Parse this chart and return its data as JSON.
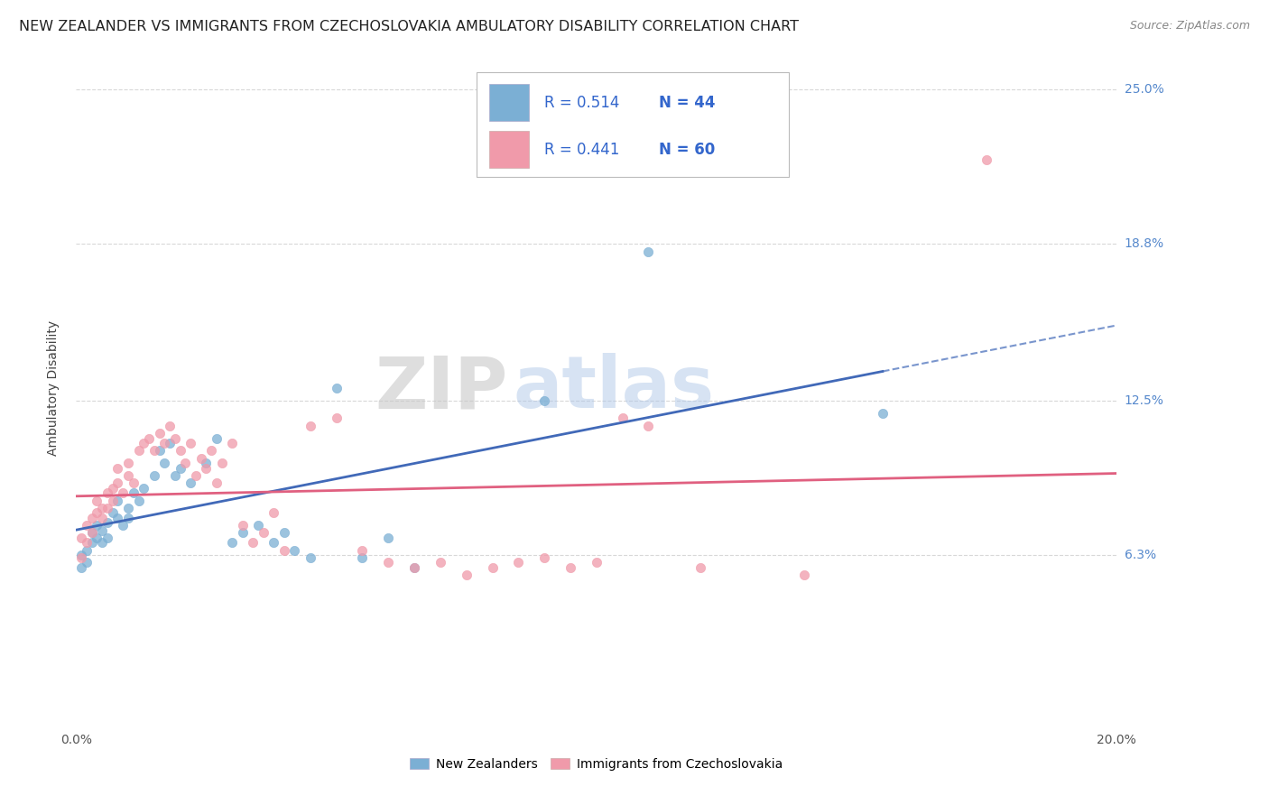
{
  "title": "NEW ZEALANDER VS IMMIGRANTS FROM CZECHOSLOVAKIA AMBULATORY DISABILITY CORRELATION CHART",
  "source": "Source: ZipAtlas.com",
  "ylabel": "Ambulatory Disability",
  "xlim": [
    0.0,
    0.2
  ],
  "ylim": [
    -0.005,
    0.265
  ],
  "yticks": [
    0.063,
    0.125,
    0.188,
    0.25
  ],
  "ytick_labels": [
    "6.3%",
    "12.5%",
    "18.8%",
    "25.0%"
  ],
  "xticks": [
    0.0,
    0.025,
    0.05,
    0.075,
    0.1,
    0.125,
    0.15,
    0.175,
    0.2
  ],
  "xtick_labels": [
    "0.0%",
    "",
    "",
    "",
    "",
    "",
    "",
    "",
    "20.0%"
  ],
  "nz_color": "#7bafd4",
  "czk_color": "#f09aaa",
  "nz_line_color": "#4169b8",
  "czk_line_color": "#e06080",
  "nz_R": 0.514,
  "nz_N": 44,
  "czk_R": 0.441,
  "czk_N": 60,
  "nz_points": [
    [
      0.001,
      0.063
    ],
    [
      0.001,
      0.058
    ],
    [
      0.002,
      0.065
    ],
    [
      0.002,
      0.06
    ],
    [
      0.003,
      0.068
    ],
    [
      0.003,
      0.072
    ],
    [
      0.004,
      0.07
    ],
    [
      0.004,
      0.075
    ],
    [
      0.005,
      0.068
    ],
    [
      0.005,
      0.073
    ],
    [
      0.006,
      0.076
    ],
    [
      0.006,
      0.07
    ],
    [
      0.007,
      0.08
    ],
    [
      0.008,
      0.078
    ],
    [
      0.008,
      0.085
    ],
    [
      0.009,
      0.075
    ],
    [
      0.01,
      0.082
    ],
    [
      0.01,
      0.078
    ],
    [
      0.011,
      0.088
    ],
    [
      0.012,
      0.085
    ],
    [
      0.013,
      0.09
    ],
    [
      0.015,
      0.095
    ],
    [
      0.016,
      0.105
    ],
    [
      0.017,
      0.1
    ],
    [
      0.018,
      0.108
    ],
    [
      0.019,
      0.095
    ],
    [
      0.02,
      0.098
    ],
    [
      0.022,
      0.092
    ],
    [
      0.025,
      0.1
    ],
    [
      0.027,
      0.11
    ],
    [
      0.03,
      0.068
    ],
    [
      0.032,
      0.072
    ],
    [
      0.035,
      0.075
    ],
    [
      0.038,
      0.068
    ],
    [
      0.04,
      0.072
    ],
    [
      0.042,
      0.065
    ],
    [
      0.045,
      0.062
    ],
    [
      0.05,
      0.13
    ],
    [
      0.055,
      0.062
    ],
    [
      0.06,
      0.07
    ],
    [
      0.065,
      0.058
    ],
    [
      0.09,
      0.125
    ],
    [
      0.11,
      0.185
    ],
    [
      0.155,
      0.12
    ]
  ],
  "czk_points": [
    [
      0.001,
      0.07
    ],
    [
      0.001,
      0.062
    ],
    [
      0.002,
      0.075
    ],
    [
      0.002,
      0.068
    ],
    [
      0.003,
      0.072
    ],
    [
      0.003,
      0.078
    ],
    [
      0.004,
      0.08
    ],
    [
      0.004,
      0.085
    ],
    [
      0.005,
      0.078
    ],
    [
      0.005,
      0.082
    ],
    [
      0.006,
      0.088
    ],
    [
      0.006,
      0.082
    ],
    [
      0.007,
      0.09
    ],
    [
      0.007,
      0.085
    ],
    [
      0.008,
      0.092
    ],
    [
      0.008,
      0.098
    ],
    [
      0.009,
      0.088
    ],
    [
      0.01,
      0.095
    ],
    [
      0.01,
      0.1
    ],
    [
      0.011,
      0.092
    ],
    [
      0.012,
      0.105
    ],
    [
      0.013,
      0.108
    ],
    [
      0.014,
      0.11
    ],
    [
      0.015,
      0.105
    ],
    [
      0.016,
      0.112
    ],
    [
      0.017,
      0.108
    ],
    [
      0.018,
      0.115
    ],
    [
      0.019,
      0.11
    ],
    [
      0.02,
      0.105
    ],
    [
      0.021,
      0.1
    ],
    [
      0.022,
      0.108
    ],
    [
      0.023,
      0.095
    ],
    [
      0.024,
      0.102
    ],
    [
      0.025,
      0.098
    ],
    [
      0.026,
      0.105
    ],
    [
      0.027,
      0.092
    ],
    [
      0.028,
      0.1
    ],
    [
      0.03,
      0.108
    ],
    [
      0.032,
      0.075
    ],
    [
      0.034,
      0.068
    ],
    [
      0.036,
      0.072
    ],
    [
      0.038,
      0.08
    ],
    [
      0.04,
      0.065
    ],
    [
      0.045,
      0.115
    ],
    [
      0.05,
      0.118
    ],
    [
      0.055,
      0.065
    ],
    [
      0.06,
      0.06
    ],
    [
      0.065,
      0.058
    ],
    [
      0.07,
      0.06
    ],
    [
      0.075,
      0.055
    ],
    [
      0.08,
      0.058
    ],
    [
      0.085,
      0.06
    ],
    [
      0.09,
      0.062
    ],
    [
      0.095,
      0.058
    ],
    [
      0.1,
      0.06
    ],
    [
      0.105,
      0.118
    ],
    [
      0.11,
      0.115
    ],
    [
      0.12,
      0.058
    ],
    [
      0.14,
      0.055
    ],
    [
      0.175,
      0.222
    ]
  ],
  "background_color": "#ffffff",
  "grid_color": "#d8d8d8",
  "watermark_zip": "ZIP",
  "watermark_atlas": "atlas",
  "right_label_color": "#5588cc",
  "title_fontsize": 11.5,
  "axis_label_fontsize": 10,
  "tick_fontsize": 10,
  "legend_text_color": "#3366cc",
  "legend_rn_color": "#333333"
}
